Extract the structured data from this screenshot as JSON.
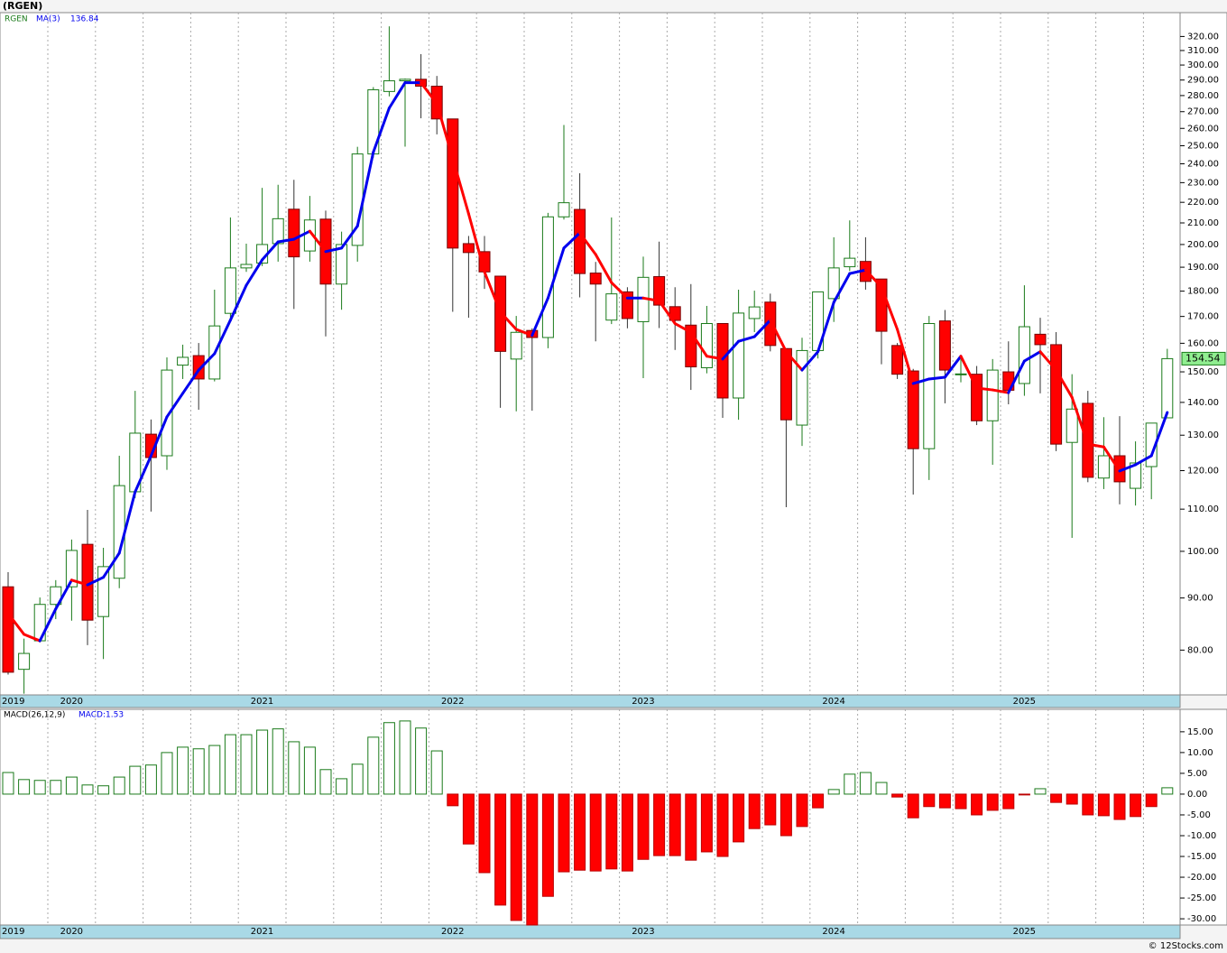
{
  "title": "(RGEN)",
  "footer": "© 12Stocks.com",
  "chart_data": [
    {
      "type": "candlestick",
      "symbol_label": "RGEN",
      "categories": [
        "2019",
        null,
        null,
        null,
        "2020",
        null,
        null,
        null,
        null,
        null,
        null,
        null,
        null,
        null,
        null,
        null,
        "2021",
        null,
        null,
        null,
        null,
        null,
        null,
        null,
        null,
        null,
        null,
        null,
        "2022",
        null,
        null,
        null,
        null,
        null,
        null,
        null,
        null,
        null,
        null,
        null,
        "2023",
        null,
        null,
        null,
        null,
        null,
        null,
        null,
        null,
        null,
        null,
        null,
        "2024",
        null,
        null,
        null,
        null,
        null,
        null,
        null,
        null,
        null,
        null,
        null,
        "2025",
        null,
        null,
        null,
        null,
        null,
        null,
        null,
        null,
        null
      ],
      "open": [
        92.3,
        76.6,
        81.7,
        88.7,
        92.3,
        101.6,
        86.3,
        94.1,
        114.4,
        130.3,
        124.1,
        152.3,
        155.6,
        147.6,
        171.2,
        189.7,
        191.8,
        200.4,
        216.6,
        197.1,
        211.8,
        182.9,
        199.6,
        245.4,
        282.6,
        289.5,
        290.5,
        286.0,
        265.6,
        200.4,
        196.8,
        186.2,
        154.4,
        164.7,
        162.1,
        212.9,
        216.5,
        187.5,
        168.6,
        179.7,
        168.0,
        186.0,
        173.8,
        166.7,
        151.4,
        167.3,
        141.4,
        169.2,
        175.6,
        158.1,
        133.0,
        157.4,
        177.0,
        190.2,
        192.5,
        185.0,
        159.2,
        150.3,
        126.1,
        168.3,
        149.3,
        149.2,
        134.3,
        150.0,
        146.1,
        163.3,
        159.5,
        127.9,
        139.7,
        118.0,
        124.1,
        115.3,
        121.1,
        135.2
      ],
      "high": [
        95.4,
        82.1,
        90.1,
        93.7,
        102.7,
        109.8,
        100.8,
        124.1,
        143.7,
        134.7,
        155.0,
        159.5,
        160.1,
        180.6,
        212.6,
        200.4,
        227.3,
        228.9,
        231.5,
        223.2,
        215.9,
        205.9,
        249.4,
        285.4,
        327.4,
        291.0,
        307.5,
        292.7,
        265.6,
        203.9,
        203.9,
        186.2,
        170.2,
        165.5,
        214.8,
        262.0,
        234.9,
        192.3,
        212.6,
        181.6,
        194.6,
        201.3,
        181.6,
        182.9,
        174.1,
        167.3,
        180.6,
        180.2,
        179.0,
        158.1,
        162.0,
        179.7,
        203.3,
        211.2,
        203.3,
        185.0,
        160.1,
        151.0,
        170.2,
        172.5,
        154.4,
        152.0,
        154.4,
        160.7,
        182.4,
        169.5,
        164.1,
        149.2,
        143.7,
        135.4,
        135.7,
        128.2,
        133.6,
        158.0
      ],
      "low": [
        75.7,
        72.5,
        81.4,
        85.8,
        85.5,
        80.9,
        78.4,
        92.0,
        112.8,
        109.4,
        120.2,
        147.6,
        137.7,
        146.8,
        168.6,
        188.0,
        190.5,
        192.4,
        172.9,
        192.4,
        162.5,
        172.6,
        192.4,
        243.3,
        279.5,
        249.5,
        266.0,
        256.5,
        171.8,
        169.5,
        180.9,
        138.3,
        137.2,
        137.4,
        158.2,
        211.6,
        177.5,
        160.7,
        167.1,
        165.5,
        147.9,
        165.6,
        157.6,
        144.0,
        149.5,
        135.2,
        134.6,
        164.1,
        157.1,
        110.5,
        126.9,
        154.6,
        167.9,
        188.4,
        180.6,
        152.6,
        147.6,
        113.7,
        117.5,
        139.7,
        146.5,
        133.0,
        121.6,
        139.4,
        142.1,
        142.9,
        125.4,
        103.1,
        116.9,
        115.1,
        111.2,
        110.9,
        112.5,
        135.2
      ],
      "close": [
        76.1,
        79.4,
        88.7,
        92.3,
        100.2,
        85.6,
        96.6,
        116.0,
        130.6,
        123.6,
        150.6,
        155.0,
        147.6,
        166.4,
        189.7,
        191.2,
        200.0,
        212.0,
        194.5,
        211.4,
        182.9,
        200.0,
        245.4,
        283.7,
        289.5,
        290.5,
        286.0,
        265.6,
        198.4,
        196.4,
        188.0,
        157.1,
        164.0,
        162.1,
        212.9,
        219.8,
        187.3,
        182.9,
        178.9,
        169.2,
        185.7,
        174.4,
        168.5,
        151.7,
        167.3,
        141.4,
        171.3,
        173.7,
        159.2,
        134.6,
        157.4,
        179.7,
        189.7,
        193.9,
        184.0,
        164.4,
        149.2,
        126.1,
        167.3,
        150.6,
        149.3,
        134.3,
        150.6,
        143.9,
        166.1,
        159.5,
        127.4,
        137.9,
        118.2,
        124.1,
        117.0,
        122.1,
        133.6,
        154.54
      ],
      "up_color": "#1a7a1a",
      "down_color": "#ff0000",
      "last_label": "154.54",
      "ma": {
        "name": "MA(3)",
        "legend_value": "136.84",
        "up_color": "#0000ee",
        "down_color": "#ff0000",
        "values": [
          86.9,
          82.9,
          81.7,
          87.8,
          93.7,
          92.7,
          94.3,
          99.6,
          114.4,
          124.1,
          135.5,
          142.9,
          150.6,
          156.3,
          168.6,
          182.4,
          193.2,
          201.2,
          202.4,
          206.1,
          196.8,
          198.4,
          208.5,
          246.4,
          272.2,
          288.3,
          288.3,
          275.0,
          243.0,
          214.4,
          188.0,
          171.7,
          165.1,
          162.9,
          177.2,
          198.4,
          205.3,
          195.6,
          183.5,
          177.2,
          177.2,
          176.1,
          167.3,
          164.0,
          155.4,
          154.4,
          160.7,
          162.4,
          168.6,
          157.0,
          150.6,
          157.0,
          175.5,
          187.3,
          188.8,
          181.7,
          165.1,
          146.1,
          147.6,
          148.2,
          155.4,
          144.6,
          144.0,
          143.1,
          153.7,
          157.0,
          150.6,
          141.6,
          127.4,
          126.6,
          119.9,
          121.6,
          124.1,
          136.84
        ]
      },
      "log_scale": true,
      "grid": true,
      "ylim": [
        72.3,
        337.7
      ],
      "yticks": [
        {
          "value": 80,
          "label": "80.00"
        },
        {
          "value": 90,
          "label": "90.00"
        },
        {
          "value": 100,
          "label": "100.00"
        },
        {
          "value": 110,
          "label": "110.00"
        },
        {
          "value": 120,
          "label": "120.00"
        },
        {
          "value": 130,
          "label": "130.00"
        },
        {
          "value": 140,
          "label": "140.00"
        },
        {
          "value": 150,
          "label": "150.00"
        },
        {
          "value": 160,
          "label": "160.00"
        },
        {
          "value": 170,
          "label": "170.00"
        },
        {
          "value": 180,
          "label": "180.00"
        },
        {
          "value": 190,
          "label": "190.00"
        },
        {
          "value": 200,
          "label": "200.00"
        },
        {
          "value": 210,
          "label": "210.00"
        },
        {
          "value": 220,
          "label": "220.00"
        },
        {
          "value": 230,
          "label": "230.00"
        },
        {
          "value": 240,
          "label": "240.00"
        },
        {
          "value": 250,
          "label": "250.00"
        },
        {
          "value": 260,
          "label": "260.00"
        },
        {
          "value": 270,
          "label": "270.00"
        },
        {
          "value": 280,
          "label": "280.00"
        },
        {
          "value": 290,
          "label": "290.00"
        },
        {
          "value": 300,
          "label": "300.00"
        },
        {
          "value": 310,
          "label": "310.00"
        },
        {
          "value": 320,
          "label": "320.00"
        }
      ]
    },
    {
      "type": "bar",
      "name": "MACD(26,12,9)",
      "legend_value": "MACD:1.53",
      "categories": [
        "2019",
        null,
        null,
        null,
        "2020",
        null,
        null,
        null,
        null,
        null,
        null,
        null,
        null,
        null,
        null,
        null,
        "2021",
        null,
        null,
        null,
        null,
        null,
        null,
        null,
        null,
        null,
        null,
        null,
        "2022",
        null,
        null,
        null,
        null,
        null,
        null,
        null,
        null,
        null,
        null,
        null,
        "2023",
        null,
        null,
        null,
        null,
        null,
        null,
        null,
        null,
        null,
        null,
        null,
        "2024",
        null,
        null,
        null,
        null,
        null,
        null,
        null,
        null,
        null,
        null,
        null,
        "2025",
        null,
        null,
        null,
        null,
        null,
        null,
        null,
        null,
        null
      ],
      "values": [
        5.2,
        3.5,
        3.3,
        3.3,
        4.1,
        2.2,
        2.0,
        4.1,
        6.7,
        7.0,
        10.0,
        11.3,
        10.9,
        11.7,
        14.3,
        14.3,
        15.4,
        15.7,
        12.6,
        11.3,
        5.9,
        3.7,
        7.2,
        13.7,
        17.2,
        17.6,
        15.9,
        10.4,
        -2.8,
        -12.0,
        -18.9,
        -26.7,
        -30.4,
        -31.5,
        -24.6,
        -18.7,
        -18.3,
        -18.5,
        -18.0,
        -18.5,
        -15.7,
        -14.8,
        -14.8,
        -15.9,
        -13.9,
        -15.0,
        -11.5,
        -8.3,
        -7.4,
        -10.0,
        -7.8,
        -3.3,
        1.1,
        4.8,
        5.2,
        2.8,
        -0.7,
        -5.7,
        -3.0,
        -3.3,
        -3.5,
        -5.0,
        -3.9,
        -3.5,
        -0.2,
        1.3,
        -2.0,
        -2.4,
        -5.0,
        -5.2,
        -6.1,
        -5.4,
        -3.0,
        1.53
      ],
      "up_color": "#1a7a1a",
      "down_color": "#ff0000",
      "grid": true,
      "ylim": [
        -31.5,
        20.4
      ],
      "yticks": [
        {
          "value": 15,
          "label": "15.00"
        },
        {
          "value": 10,
          "label": "10.00"
        },
        {
          "value": 5,
          "label": "5.00"
        },
        {
          "value": 0,
          "label": "0.00"
        },
        {
          "value": -5,
          "label": "-5.00"
        },
        {
          "value": -10,
          "label": "-10.00"
        },
        {
          "value": -15,
          "label": "-15.00"
        },
        {
          "value": -20,
          "label": "-20.00"
        },
        {
          "value": -25,
          "label": "-25.00"
        },
        {
          "value": -30,
          "label": "-30.00"
        }
      ]
    }
  ]
}
